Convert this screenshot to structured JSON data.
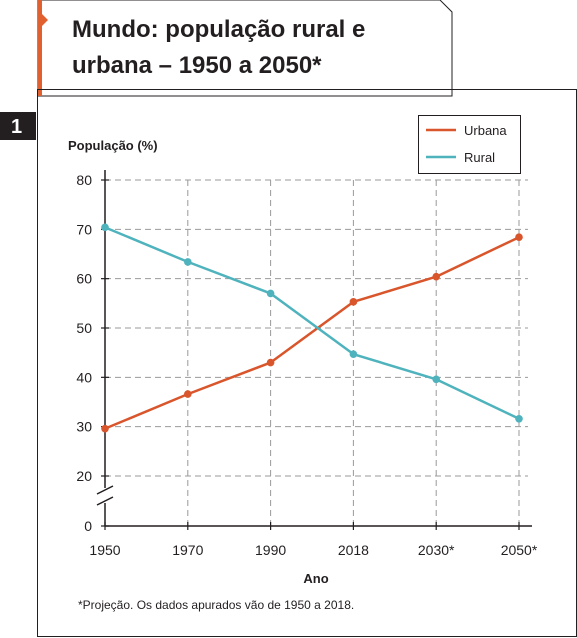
{
  "figure": {
    "title_line1": "Mundo: população rural e",
    "title_line2": "urbana – 1950 a 2050*",
    "number": "1",
    "note": "*Projeção. Os dados apurados vão de 1950 a 2018."
  },
  "colors": {
    "accent": "#e06030",
    "urbana": "#d9552b",
    "rural": "#4fb3bd",
    "grid": "#9a9a9a",
    "badge": "#231f20"
  },
  "chart_data": {
    "type": "line",
    "categories": [
      "1950",
      "1970",
      "1990",
      "2018",
      "2030*",
      "2050*"
    ],
    "xlabel": "Ano",
    "ylabel": "População (%)",
    "y_ticks": [
      "0",
      "20",
      "30",
      "40",
      "50",
      "60",
      "70",
      "80"
    ],
    "ylim": [
      20,
      80
    ],
    "axis_break": true,
    "grid": true,
    "legend_position": "top-right",
    "series": [
      {
        "name": "Urbana",
        "color": "#d9552b",
        "values": [
          29.6,
          36.6,
          43.0,
          55.3,
          60.4,
          68.4
        ]
      },
      {
        "name": "Rural",
        "color": "#4fb3bd",
        "values": [
          70.4,
          63.4,
          57.0,
          44.7,
          39.6,
          31.6
        ]
      }
    ]
  }
}
